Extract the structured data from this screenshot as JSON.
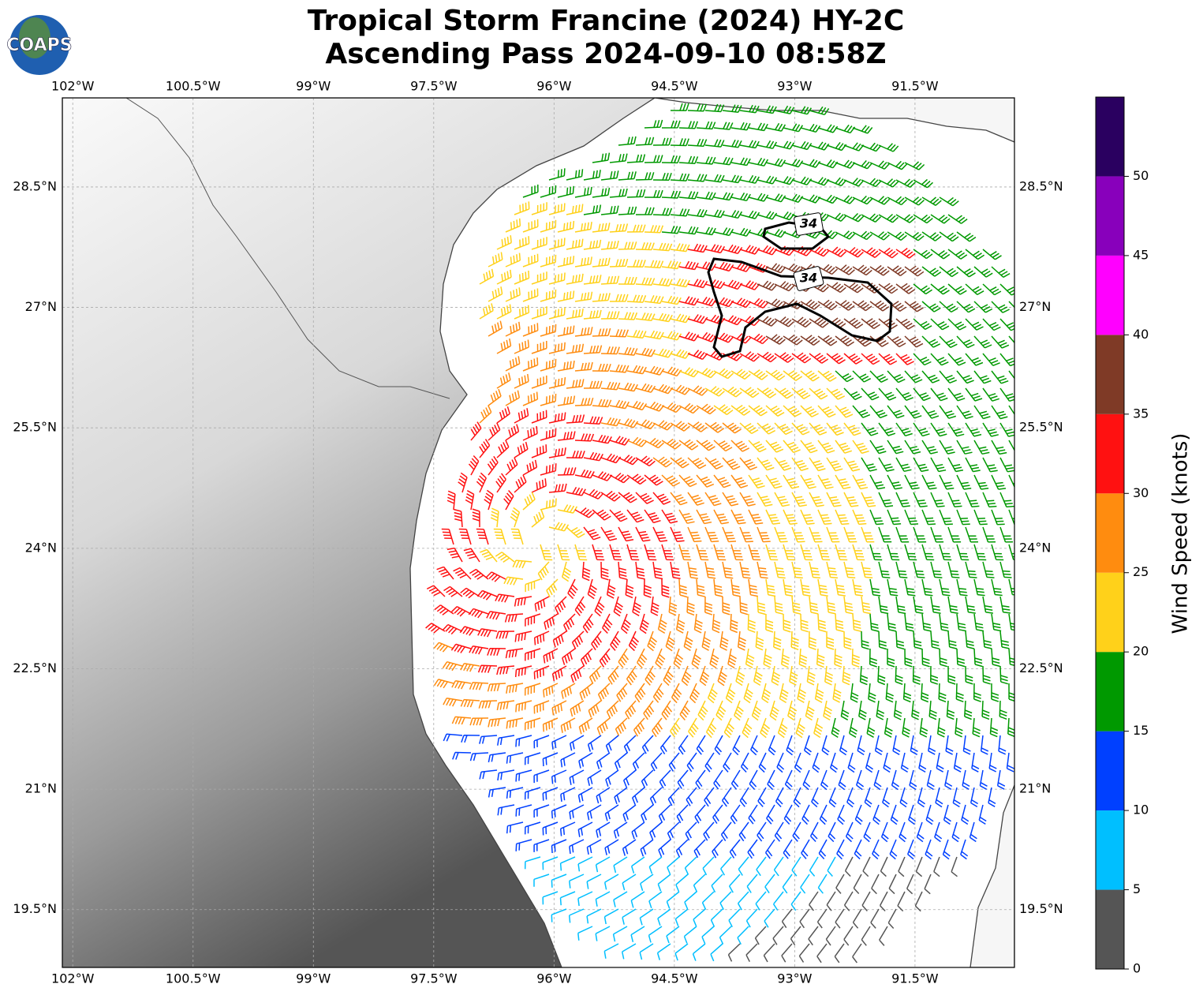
{
  "title": [
    "Tropical Storm Francine (2024) HY-2C",
    "Ascending Pass 2024-09-10 08:58Z"
  ],
  "logo": "COAPS",
  "map": {
    "xlim": [
      -102.13,
      -90.26
    ],
    "ylim": [
      18.78,
      29.61
    ],
    "xticks": [
      {
        "value": -102,
        "label": "102°W"
      },
      {
        "value": -100.5,
        "label": "100.5°W"
      },
      {
        "value": -99,
        "label": "99°W"
      },
      {
        "value": -97.5,
        "label": "97.5°W"
      },
      {
        "value": -96,
        "label": "96°W"
      },
      {
        "value": -94.5,
        "label": "94.5°W"
      },
      {
        "value": -93,
        "label": "93°W"
      },
      {
        "value": -91.5,
        "label": "91.5°W"
      }
    ],
    "yticks": [
      {
        "value": 28.5,
        "label": "28.5°N"
      },
      {
        "value": 27,
        "label": "27°N"
      },
      {
        "value": 25.5,
        "label": "25.5°N"
      },
      {
        "value": 24,
        "label": "24°N"
      },
      {
        "value": 22.5,
        "label": "22.5°N"
      },
      {
        "value": 21,
        "label": "21°N"
      },
      {
        "value": 19.5,
        "label": "19.5°N"
      }
    ],
    "grid": true,
    "contour_labels": [
      "34",
      "34"
    ]
  },
  "colorbar": {
    "label": "Wind Speed (knots)",
    "bounds": [
      0,
      5,
      10,
      15,
      20,
      25,
      30,
      35,
      40,
      45,
      50,
      55
    ],
    "ticks": [
      0,
      5,
      10,
      15,
      20,
      25,
      30,
      35,
      40,
      45,
      50
    ],
    "colors": [
      "#555555",
      "#00bfff",
      "#0040ff",
      "#009900",
      "#ffd11a",
      "#ff8c0f",
      "#ff1111",
      "#7f3a26",
      "#ff00ff",
      "#8800bb",
      "#2a0060"
    ]
  }
}
